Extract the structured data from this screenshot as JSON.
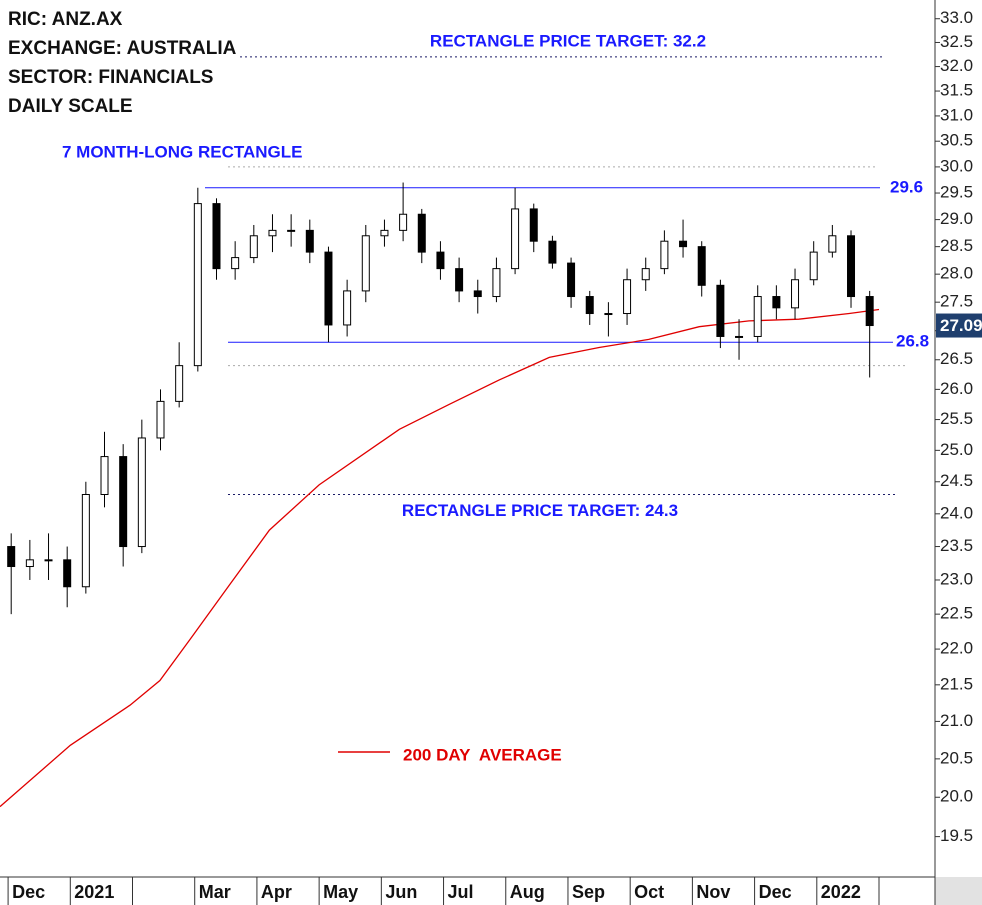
{
  "chart_data": {
    "type": "candlestick",
    "title_lines": [
      "RIC: ANZ.AX",
      "EXCHANGE: AUSTRALIA",
      "SECTOR: FINANCIALS",
      "DAILY SCALE"
    ],
    "log_scale": true,
    "ylim": [
      19.0,
      33.4
    ],
    "yticks": [
      19.5,
      {
        "value": 20,
        "label": "20.0"
      },
      20.5,
      {
        "value": 21,
        "label": "21.0"
      },
      21.5,
      {
        "value": 22,
        "label": "22.0"
      },
      22.5,
      {
        "value": 23,
        "label": "23.0"
      },
      23.5,
      {
        "value": 24,
        "label": "24.0"
      },
      24.5,
      {
        "value": 25,
        "label": "25.0"
      },
      25.5,
      {
        "value": 26,
        "label": "26.0"
      },
      26.5,
      {
        "value": 27,
        "label": "27.0"
      },
      27.5,
      {
        "value": 28,
        "label": "28.0"
      },
      28.5,
      {
        "value": 29,
        "label": "29.0"
      },
      29.5,
      {
        "value": 30,
        "label": "30.0"
      },
      30.5,
      {
        "value": 31,
        "label": "31.0"
      },
      31.5,
      {
        "value": 32,
        "label": "32.0"
      },
      32.5,
      {
        "value": 33,
        "label": "33.0"
      }
    ],
    "xlim": [
      -0.13,
      14.9
    ],
    "categories": [
      "Dec",
      "2021",
      null,
      "Mar",
      "Apr",
      "May",
      "Jun",
      "Jul",
      "Aug",
      "Sep",
      "Oct",
      "Nov",
      "Dec",
      "2022",
      null
    ],
    "x": [
      0.05,
      0.35,
      0.65,
      0.95,
      1.25,
      1.55,
      1.85,
      2.15,
      2.45,
      2.75,
      3.05,
      3.35,
      3.65,
      3.95,
      4.25,
      4.55,
      4.85,
      5.15,
      5.45,
      5.75,
      6.05,
      6.35,
      6.65,
      6.95,
      7.25,
      7.55,
      7.85,
      8.15,
      8.45,
      8.75,
      9.05,
      9.35,
      9.65,
      9.95,
      10.25,
      10.55,
      10.85,
      11.15,
      11.45,
      11.75,
      12.05,
      12.35,
      12.65,
      12.95,
      13.25,
      13.55,
      13.85
    ],
    "open": [
      23.5,
      23.2,
      23.3,
      23.3,
      22.9,
      24.3,
      24.9,
      23.5,
      25.2,
      25.8,
      26.4,
      29.3,
      28.1,
      28.3,
      28.7,
      28.8,
      28.8,
      28.4,
      27.1,
      27.7,
      28.7,
      28.8,
      29.1,
      28.4,
      28.1,
      27.7,
      27.6,
      28.1,
      29.2,
      28.6,
      28.2,
      27.6,
      27.3,
      27.3,
      27.9,
      28.1,
      28.6,
      28.5,
      27.8,
      26.9,
      26.9,
      27.6,
      27.4,
      27.9,
      28.4,
      28.7,
      27.6
    ],
    "high": [
      23.7,
      23.6,
      23.7,
      23.5,
      24.5,
      25.3,
      25.1,
      25.5,
      26.0,
      26.8,
      29.6,
      29.4,
      28.6,
      28.9,
      29.1,
      29.1,
      29.0,
      28.5,
      27.9,
      28.9,
      29.0,
      29.7,
      29.2,
      28.6,
      28.3,
      27.9,
      28.3,
      29.6,
      29.3,
      28.7,
      28.3,
      27.7,
      27.5,
      28.1,
      28.3,
      28.8,
      29.0,
      28.6,
      27.9,
      27.2,
      27.8,
      27.8,
      28.1,
      28.6,
      28.9,
      28.8,
      27.7
    ],
    "low": [
      22.5,
      23.0,
      23.0,
      22.6,
      22.8,
      24.1,
      23.2,
      23.4,
      25.0,
      25.7,
      26.3,
      27.9,
      27.9,
      28.2,
      28.4,
      28.5,
      28.2,
      26.8,
      26.9,
      27.5,
      28.5,
      28.6,
      28.2,
      27.9,
      27.5,
      27.3,
      27.5,
      28.0,
      28.4,
      28.1,
      27.4,
      27.1,
      26.9,
      27.1,
      27.7,
      28.0,
      28.3,
      27.6,
      26.7,
      26.5,
      26.8,
      27.2,
      27.2,
      27.8,
      28.3,
      27.4,
      26.2
    ],
    "close": [
      23.2,
      23.3,
      23.3,
      22.9,
      24.3,
      24.9,
      23.5,
      25.2,
      25.8,
      26.4,
      29.3,
      28.1,
      28.3,
      28.7,
      28.8,
      28.8,
      28.4,
      27.1,
      27.7,
      28.7,
      28.8,
      29.1,
      28.4,
      28.1,
      27.7,
      27.6,
      28.1,
      29.2,
      28.6,
      28.2,
      27.6,
      27.3,
      27.3,
      27.9,
      28.1,
      28.6,
      28.5,
      27.8,
      26.9,
      26.9,
      27.6,
      27.4,
      27.9,
      28.4,
      28.7,
      27.6,
      27.09
    ],
    "candle_color": "#000000",
    "moving_average": {
      "name": "200 DAY  AVERAGE",
      "color": "#e00000",
      "x": [
        -0.13,
        1.0,
        1.96,
        2.44,
        2.92,
        3.56,
        4.2,
        5.0,
        6.29,
        7.09,
        7.9,
        8.7,
        9.5,
        10.3,
        11.11,
        11.91,
        12.71,
        13.52,
        14.0
      ],
      "values": [
        19.88,
        20.68,
        21.22,
        21.56,
        22.13,
        22.93,
        23.75,
        24.45,
        25.34,
        25.75,
        26.16,
        26.54,
        26.71,
        26.85,
        27.07,
        27.17,
        27.2,
        27.3,
        27.37
      ]
    },
    "last_price": {
      "value": 27.09,
      "label": "27.09",
      "color": "#1f3f6e"
    },
    "levels": [
      {
        "value": 29.6,
        "label": "29.6",
        "style": "solid",
        "color": "#1a1aff"
      },
      {
        "value": 26.8,
        "label": "26.8",
        "style": "solid",
        "color": "#1a1aff"
      },
      {
        "value": 32.2,
        "label": "RECTANGLE PRICE TARGET: 32.2",
        "style": "dotted",
        "color": "#1a1a66"
      },
      {
        "value": 24.3,
        "label": "RECTANGLE PRICE TARGET: 24.3",
        "style": "dotted",
        "color": "#1a1a66"
      },
      {
        "value": 30.0,
        "style": "dotted",
        "color": "#aaaaaa"
      },
      {
        "value": 26.4,
        "style": "dotted",
        "color": "#aaaaaa"
      }
    ],
    "pattern_label": "7 MONTH-LONG RECTANGLE"
  }
}
